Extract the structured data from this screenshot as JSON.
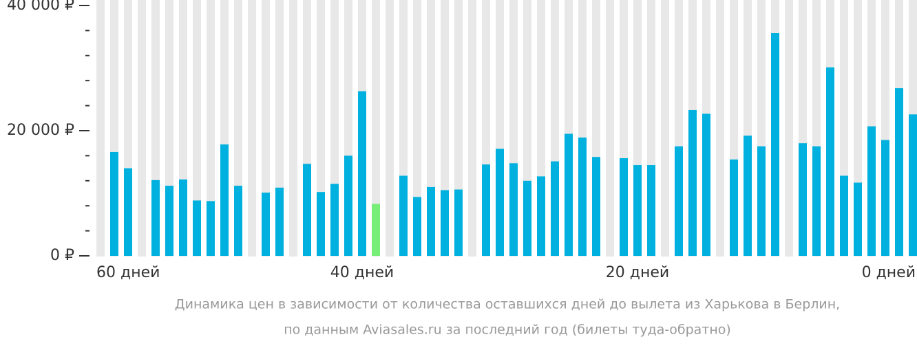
{
  "chart_data": {
    "type": "bar",
    "caption": [
      "Динамика цен в зависимости от количества оставшихся дней до вылета из Харькова в Берлин,",
      "по данным Aviasales.ru за последний год (билеты туда-обратно)"
    ],
    "categories": [
      "60 дней",
      null,
      null,
      null,
      null,
      null,
      null,
      null,
      null,
      null,
      null,
      null,
      null,
      null,
      null,
      null,
      null,
      null,
      null,
      "40 дней",
      null,
      null,
      null,
      null,
      null,
      null,
      null,
      null,
      null,
      null,
      null,
      null,
      null,
      null,
      null,
      null,
      null,
      null,
      null,
      "20 дней",
      null,
      null,
      null,
      null,
      null,
      null,
      null,
      null,
      null,
      null,
      null,
      null,
      null,
      null,
      null,
      null,
      null,
      null,
      null,
      "0 дней"
    ],
    "values": [
      null,
      16600,
      14000,
      null,
      12100,
      11200,
      12200,
      8850,
      8750,
      17800,
      11200,
      null,
      10100,
      10900,
      null,
      14700,
      10200,
      11500,
      16000,
      26300,
      8300,
      null,
      12800,
      9400,
      11000,
      10500,
      10600,
      null,
      14600,
      17100,
      14800,
      12000,
      12700,
      15100,
      19500,
      18900,
      15800,
      null,
      15600,
      14500,
      14500,
      null,
      17500,
      23300,
      22700,
      null,
      15400,
      19200,
      17500,
      35600,
      null,
      18000,
      17500,
      30100,
      12800,
      11700,
      20700,
      18500,
      26800,
      22600
    ],
    "color": "#00b0de",
    "highlight_color": "#77ee77",
    "highlight_index": 20,
    "background_color": "#e8e8e8",
    "ylim": [
      0,
      40000
    ],
    "yticks": [
      {
        "value": 0,
        "label": "0 ₽"
      },
      {
        "value": 20000,
        "label": "20 000 ₽"
      },
      {
        "value": 40000,
        "label": "40 000 ₽"
      }
    ],
    "minor_yticks": [
      4000,
      8000,
      12000,
      16000,
      24000,
      28000,
      32000,
      36000
    ]
  }
}
